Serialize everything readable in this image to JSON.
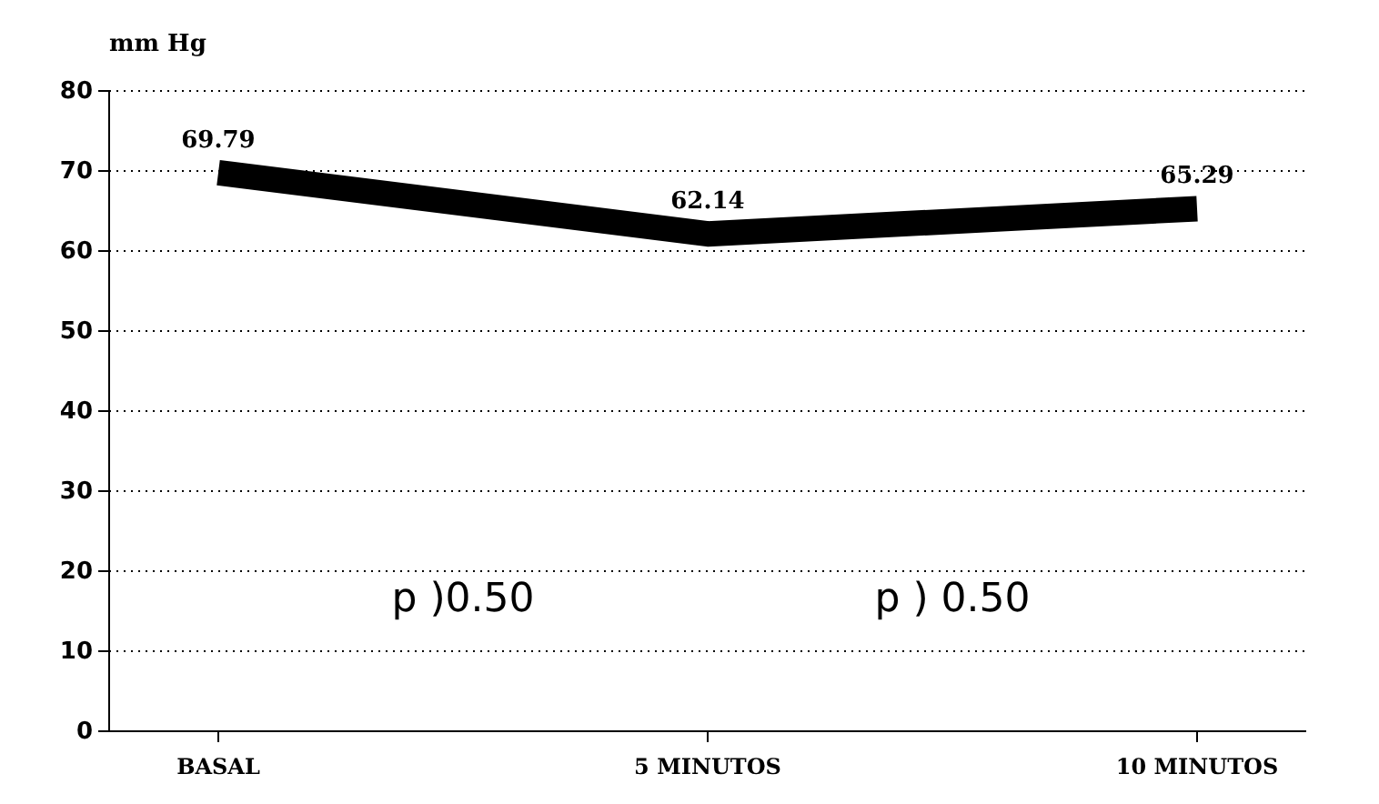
{
  "chart_data": {
    "type": "line",
    "ylabel": "mm Hg",
    "categories": [
      "BASAL",
      "5 MINUTOS",
      "10 MINUTOS"
    ],
    "series": [
      {
        "color": "#000000",
        "values": [
          69.79,
          62.14,
          65.29
        ]
      }
    ],
    "ylim": [
      0,
      80
    ],
    "yticks": [
      0,
      10,
      20,
      30,
      40,
      50,
      60,
      70,
      80
    ],
    "grid": "y",
    "data_labels": true,
    "line_style": "solid",
    "marker": "none",
    "annotations": [
      "p )0.50",
      "p ) 0.50"
    ]
  }
}
